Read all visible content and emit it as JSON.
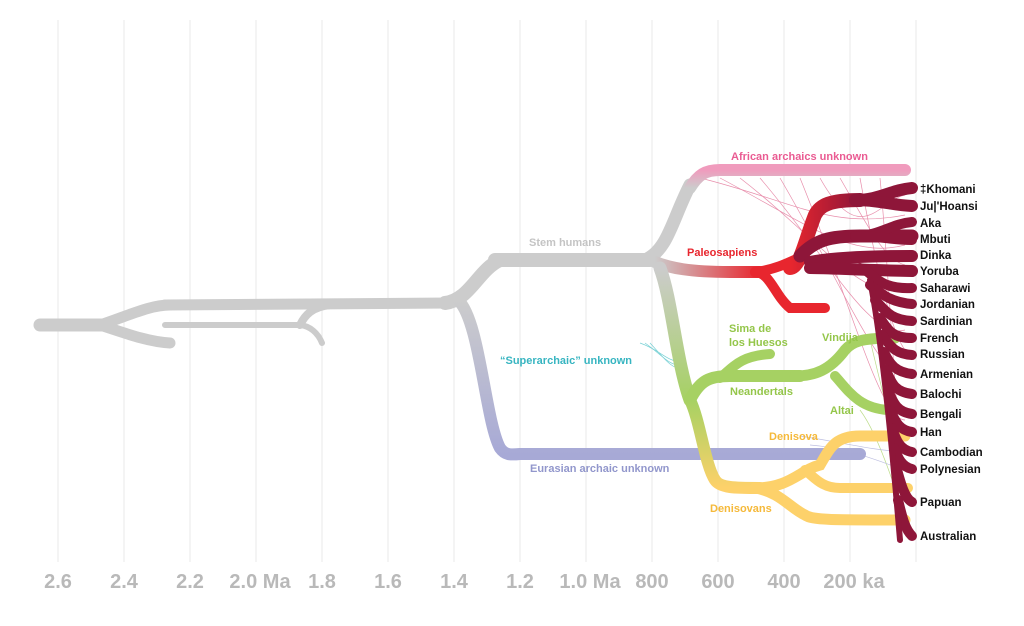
{
  "axis": {
    "ticks": [
      "2.6",
      "2.4",
      "2.2",
      "2.0 Ma",
      "1.8",
      "1.6",
      "1.4",
      "1.2",
      "1.0 Ma",
      "800",
      "600",
      "400",
      "200 ka"
    ]
  },
  "lineages": {
    "stem": {
      "label": "Stem humans",
      "color": "#cccccc"
    },
    "superarchaic": {
      "label": "“Superarchaic” unknown",
      "color": "#4cc2c7"
    },
    "eurasian": {
      "label": "Eurasian archaic unknown",
      "color": "#a7a9d6"
    },
    "african": {
      "label": "African archaics unknown",
      "color": "#f09bbd"
    },
    "paleosapiens": {
      "label": "Paleosapiens",
      "color": "#e8262e"
    },
    "sima": {
      "label": "Sima de\nlos Huesos",
      "color": "#a6d163"
    },
    "vindija": {
      "label": "Vindija",
      "color": "#a6d163"
    },
    "neandertals": {
      "label": "Neandertals",
      "color": "#a6d163"
    },
    "altai": {
      "label": "Altai",
      "color": "#a6d163"
    },
    "denisova": {
      "label": "Denisova",
      "color": "#fdd16a"
    },
    "denisovans": {
      "label": "Denisovans",
      "color": "#fdd16a"
    },
    "modern": {
      "color": "#8e1639"
    }
  },
  "populations": [
    "‡Khomani",
    "Ju|'Hoansi",
    "Aka",
    "Mbuti",
    "Dinka",
    "Yoruba",
    "Saharawi",
    "Jordanian",
    "Sardinian",
    "French",
    "Russian",
    "Armenian",
    "Balochi",
    "Bengali",
    "Han",
    "Cambodian",
    "Polynesian",
    "Papuan",
    "Australian"
  ]
}
